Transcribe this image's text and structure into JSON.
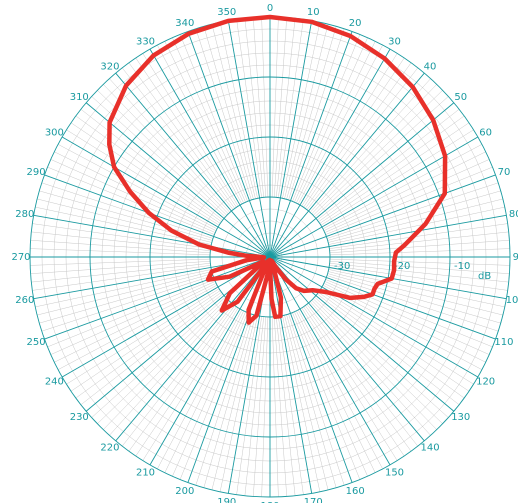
{
  "chart_data": {
    "type": "polar-line",
    "angular_unit": "degrees",
    "angular_direction": "clockwise",
    "zero_direction": "top",
    "angle_ticks": [
      "0",
      "10",
      "20",
      "30",
      "40",
      "50",
      "60",
      "70",
      "80",
      "90",
      "100",
      "110",
      "120",
      "130",
      "140",
      "150",
      "160",
      "170",
      "180",
      "190",
      "200",
      "210",
      "220",
      "230",
      "240",
      "250",
      "260",
      "270",
      "280",
      "290",
      "300",
      "310",
      "320",
      "330",
      "340",
      "350"
    ],
    "radial_unit_label": "dB",
    "radial_range": [
      -40,
      0
    ],
    "radial_ticks": [
      "-30",
      "-20",
      "-10"
    ],
    "grid": true,
    "grid_color": "#1a9aa0",
    "minor_grid_color": "#c8c8c8",
    "series": [
      {
        "color": "#e8302a",
        "points": [
          [
            0,
            0.0
          ],
          [
            10,
            -0.2
          ],
          [
            20,
            -0.8
          ],
          [
            30,
            -1.8
          ],
          [
            40,
            -3.0
          ],
          [
            50,
            -4.5
          ],
          [
            60,
            -6.3
          ],
          [
            70,
            -9.0
          ],
          [
            78,
            -13.5
          ],
          [
            85,
            -17.5
          ],
          [
            88,
            -19.0
          ],
          [
            92,
            -19.3
          ],
          [
            96,
            -19.2
          ],
          [
            100,
            -19.4
          ],
          [
            104,
            -21.5
          ],
          [
            107,
            -21.8
          ],
          [
            110,
            -21.8
          ],
          [
            113,
            -23.0
          ],
          [
            117,
            -25.0
          ],
          [
            122,
            -29.0
          ],
          [
            128,
            -31.0
          ],
          [
            135,
            -32.0
          ],
          [
            140,
            -33.2
          ],
          [
            145,
            -35.5
          ],
          [
            150,
            -38.0
          ],
          [
            155,
            -39.3
          ],
          [
            160,
            -38.5
          ],
          [
            165,
            -33.0
          ],
          [
            170,
            -30.0
          ],
          [
            175,
            -30.0
          ],
          [
            178,
            -33.0
          ],
          [
            181,
            -39.0
          ],
          [
            184,
            -39.5
          ],
          [
            188,
            -37.0
          ],
          [
            193,
            -30.0
          ],
          [
            198,
            -28.5
          ],
          [
            202,
            -30.5
          ],
          [
            206,
            -39.3
          ],
          [
            210,
            -38.6
          ],
          [
            216,
            -30.8
          ],
          [
            222,
            -28.0
          ],
          [
            228,
            -31.0
          ],
          [
            233,
            -38.7
          ],
          [
            238,
            -38.3
          ],
          [
            244,
            -32.5
          ],
          [
            250,
            -29.0
          ],
          [
            256,
            -30.0
          ],
          [
            262,
            -36.0
          ],
          [
            266,
            -39.0
          ],
          [
            270,
            -38.5
          ],
          [
            273,
            -36.0
          ],
          [
            276,
            -33.0
          ],
          [
            280,
            -28.0
          ],
          [
            285,
            -23.0
          ],
          [
            290,
            -18.5
          ],
          [
            295,
            -14.3
          ],
          [
            300,
            -10.0
          ],
          [
            305,
            -7.3
          ],
          [
            310,
            -5.1
          ],
          [
            320,
            -2.7
          ],
          [
            330,
            -1.2
          ],
          [
            340,
            -0.4
          ],
          [
            350,
            -0.05
          ],
          [
            360,
            0.0
          ]
        ]
      }
    ]
  }
}
